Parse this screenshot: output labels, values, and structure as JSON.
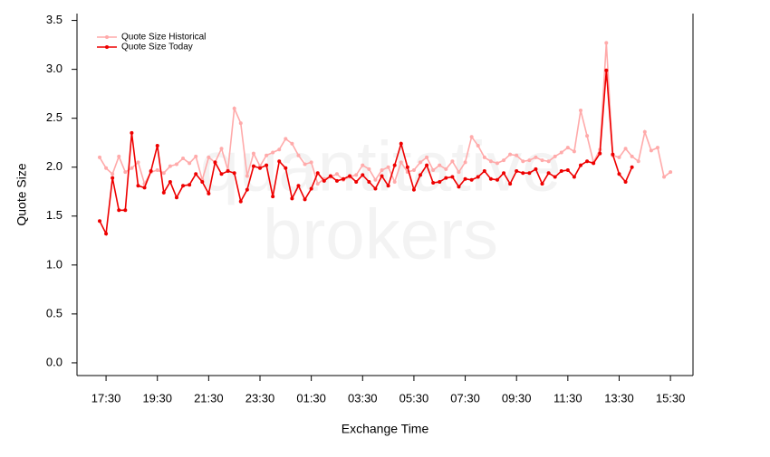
{
  "chart_data": {
    "type": "line",
    "watermark": [
      "quantitative",
      "brokers"
    ],
    "x_label": "Exchange Time",
    "y_label": "Quote Size",
    "categories": [
      null,
      "17:30",
      null,
      null,
      null,
      null,
      null,
      null,
      null,
      "19:30",
      null,
      null,
      null,
      null,
      null,
      null,
      null,
      "21:30",
      null,
      null,
      null,
      null,
      null,
      null,
      null,
      "23:30",
      null,
      null,
      null,
      null,
      null,
      null,
      null,
      "01:30",
      null,
      null,
      null,
      null,
      null,
      null,
      null,
      "03:30",
      null,
      null,
      null,
      null,
      null,
      null,
      null,
      "05:30",
      null,
      null,
      null,
      null,
      null,
      null,
      null,
      "07:30",
      null,
      null,
      null,
      null,
      null,
      null,
      null,
      "09:30",
      null,
      null,
      null,
      null,
      null,
      null,
      null,
      "11:30",
      null,
      null,
      null,
      null,
      null,
      null,
      null,
      "13:30",
      null,
      null,
      null,
      null,
      null,
      null,
      null,
      "15:30"
    ],
    "series": [
      {
        "name": "Quote Size Historical",
        "color": "#ffaaaa",
        "values": [
          2.1,
          1.99,
          1.93,
          2.11,
          1.95,
          1.99,
          2.05,
          1.83,
          1.95,
          1.97,
          1.94,
          2.01,
          2.03,
          2.09,
          2.04,
          2.11,
          1.87,
          2.1,
          2.05,
          2.19,
          1.97,
          2.6,
          2.45,
          1.91,
          2.14,
          2.01,
          2.12,
          2.15,
          2.18,
          2.29,
          2.24,
          2.12,
          2.03,
          2.05,
          1.83,
          1.88,
          1.9,
          1.93,
          1.87,
          1.9,
          1.92,
          2.02,
          1.98,
          1.87,
          1.97,
          2.0,
          1.85,
          2.05,
          1.95,
          1.97,
          2.05,
          2.1,
          1.97,
          2.02,
          1.98,
          2.06,
          1.95,
          2.05,
          2.31,
          2.22,
          2.1,
          2.06,
          2.04,
          2.07,
          2.13,
          2.12,
          2.06,
          2.07,
          2.1,
          2.07,
          2.06,
          2.11,
          2.15,
          2.2,
          2.16,
          2.58,
          2.32,
          2.05,
          2.18,
          3.27,
          2.12,
          2.1,
          2.19,
          2.11,
          2.06,
          2.36,
          2.17,
          2.2,
          1.9,
          1.95
        ]
      },
      {
        "name": "Quote Size Today",
        "color": "#ee0000",
        "values": [
          1.45,
          1.32,
          1.89,
          1.56,
          1.56,
          2.35,
          1.81,
          1.79,
          1.96,
          2.22,
          1.74,
          1.85,
          1.69,
          1.81,
          1.82,
          1.93,
          1.85,
          1.73,
          2.05,
          1.93,
          1.96,
          1.94,
          1.65,
          1.77,
          2.01,
          1.99,
          2.02,
          1.7,
          2.06,
          1.99,
          1.68,
          1.81,
          1.67,
          1.78,
          1.94,
          1.86,
          1.91,
          1.86,
          1.88,
          1.91,
          1.85,
          1.92,
          1.85,
          1.78,
          1.91,
          1.81,
          2.02,
          2.24,
          2.0,
          1.77,
          1.92,
          2.02,
          1.84,
          1.85,
          1.89,
          1.9,
          1.8,
          1.88,
          1.87,
          1.9,
          1.96,
          1.88,
          1.87,
          1.94,
          1.83,
          1.96,
          1.94,
          1.94,
          1.98,
          1.83,
          1.94,
          1.9,
          1.96,
          1.97,
          1.9,
          2.02,
          2.06,
          2.04,
          2.14,
          2.99,
          2.13,
          1.93,
          1.85,
          2.0,
          null,
          null,
          null,
          null,
          null,
          null
        ]
      }
    ],
    "ylim": [
      -0.13,
      3.57
    ],
    "yticks": [
      {
        "value": 0,
        "label": "0.0"
      },
      {
        "value": 0.5,
        "label": "0.5"
      },
      {
        "value": 1,
        "label": "1.0"
      },
      {
        "value": 1.5,
        "label": "1.5"
      },
      {
        "value": 2,
        "label": "2.0"
      },
      {
        "value": 2.5,
        "label": "2.5"
      },
      {
        "value": 3,
        "label": "3.0"
      },
      {
        "value": 3.5,
        "label": "3.5"
      }
    ],
    "legend": "top-left"
  }
}
